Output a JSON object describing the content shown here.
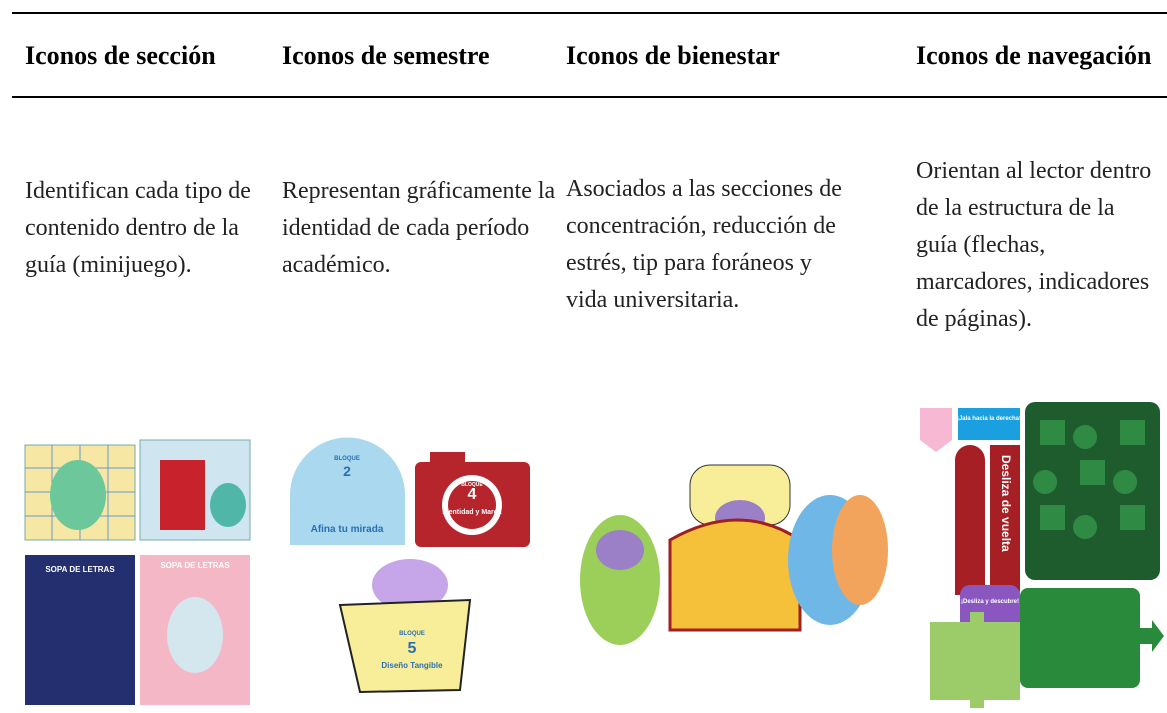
{
  "table": {
    "header": [
      "Iconos de sección",
      "Iconos de semestre",
      "Iconos de bienestar",
      "Iconos de navegación"
    ],
    "rows": [
      [
        "Identifican cada tipo de contenido dentro de la guía (minijuego).",
        "Representan gráficamente la identidad de cada período académico.",
        "Asociados a las secciones de concentración, reducción de estrés, tip para foráneos y vida universitaria.",
        "Orientan al lector dentro de la estructura de la guía (flechas, marcadores, indicadores de páginas)."
      ]
    ]
  },
  "illustrations": {
    "section": [
      "SOPA DE LETRAS",
      "SOPA DE LETRAS"
    ],
    "semester": [
      {
        "block": "BLOQUE",
        "number": "2",
        "name": "Afina tu mirada"
      },
      {
        "block": "BLOQUE",
        "number": "4",
        "name": "Identidad y Marca"
      },
      {
        "block": "BLOQUE",
        "number": "5",
        "name": "Diseño Tangible"
      }
    ],
    "navigation": [
      "¡Jala hacia la derecha!",
      "Desliza de vuelta",
      "¡Desliza y descubre!"
    ]
  }
}
